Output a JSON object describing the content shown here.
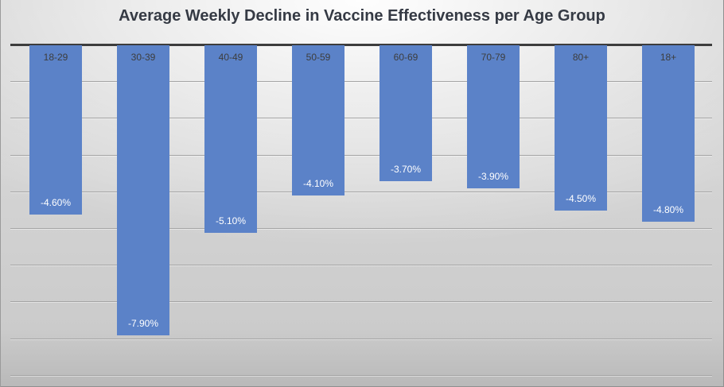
{
  "title": "Average Weekly Decline in Vaccine Effectiveness per Age Group",
  "chart_data": {
    "type": "bar",
    "orientation": "vertical-negative",
    "title": "Average Weekly Decline in Vaccine Effectiveness per Age Group",
    "categories": [
      "18-29",
      "30-39",
      "40-49",
      "50-59",
      "60-69",
      "70-79",
      "80+",
      "18+"
    ],
    "values": [
      -4.6,
      -7.9,
      -5.1,
      -4.1,
      -3.7,
      -3.9,
      -4.5,
      -4.8
    ],
    "data_labels": [
      "-4.60%",
      "-7.90%",
      "-5.10%",
      "-4.10%",
      "-3.70%",
      "-3.90%",
      "-4.50%",
      "-4.80%"
    ],
    "xlabel": "",
    "ylabel": "",
    "ylim": [
      -9,
      0
    ],
    "gridline_step": 1,
    "grid": true,
    "legend_position": "none",
    "axis_labels_shown": false,
    "category_label_position": "inside-top-of-bar",
    "data_label_position": "inside-end-of-bar",
    "colors": {
      "bar": "#5b82c8",
      "value_label": "#ffffff",
      "category_label": "#3d3d3d",
      "axis_line": "#3d3d3d",
      "gridline": "#a4a4a4",
      "title": "#353a44",
      "background_light": "#ffffff",
      "background_dark": "#c9c9c9"
    }
  }
}
